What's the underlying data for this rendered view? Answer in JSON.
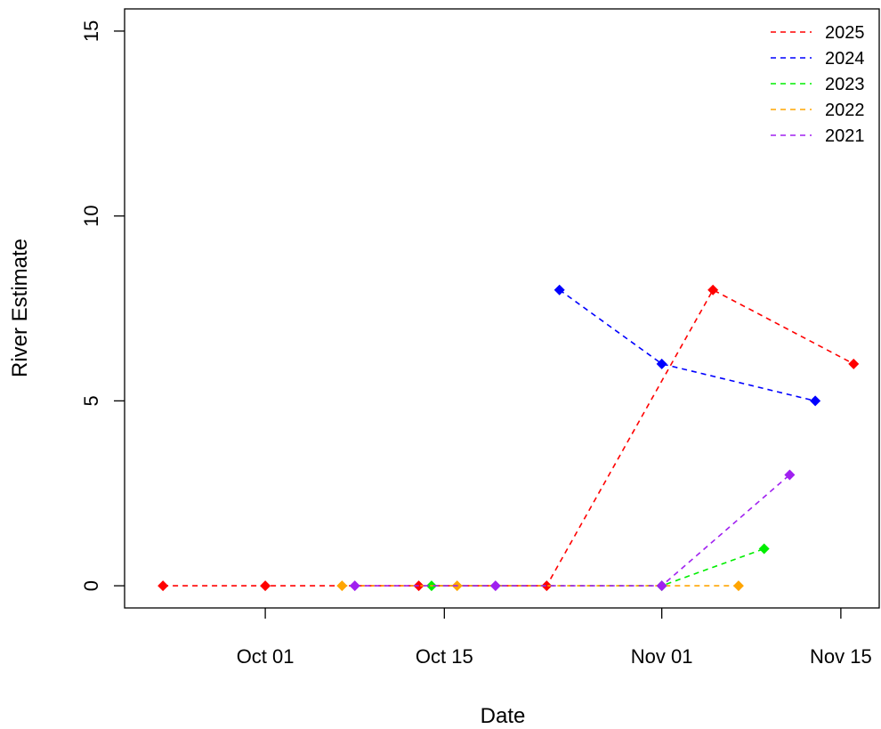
{
  "chart_data": {
    "type": "line",
    "xlabel": "Date",
    "ylabel": "River Estimate",
    "x_range": [
      "2025-09-20",
      "2025-11-18"
    ],
    "ylim": [
      -0.6,
      15.6
    ],
    "x_ticks": [
      {
        "date": "2025-10-01",
        "label": "Oct 01"
      },
      {
        "date": "2025-10-15",
        "label": "Oct 15"
      },
      {
        "date": "2025-11-01",
        "label": "Nov 01"
      },
      {
        "date": "2025-11-15",
        "label": "Nov 15"
      }
    ],
    "y_ticks": [
      0,
      5,
      10,
      15
    ],
    "grid": false,
    "legend_position": "top-right",
    "line_style": "dashed",
    "marker": "diamond",
    "series": [
      {
        "name": "2025",
        "color": "#ff0000",
        "points": [
          {
            "x": "2025-09-23",
            "y": 0
          },
          {
            "x": "2025-10-01",
            "y": 0
          },
          {
            "x": "2025-10-13",
            "y": 0
          },
          {
            "x": "2025-10-23",
            "y": 0
          },
          {
            "x": "2025-11-05",
            "y": 8
          },
          {
            "x": "2025-11-16",
            "y": 6
          }
        ]
      },
      {
        "name": "2024",
        "color": "#0000ff",
        "points": [
          {
            "x": "2025-10-24",
            "y": 8
          },
          {
            "x": "2025-11-01",
            "y": 6
          },
          {
            "x": "2025-11-13",
            "y": 5
          }
        ]
      },
      {
        "name": "2023",
        "color": "#00ee00",
        "points": [
          {
            "x": "2025-10-14",
            "y": 0
          },
          {
            "x": "2025-11-01",
            "y": 0
          },
          {
            "x": "2025-11-09",
            "y": 1
          }
        ]
      },
      {
        "name": "2022",
        "color": "#ffa500",
        "points": [
          {
            "x": "2025-10-07",
            "y": 0
          },
          {
            "x": "2025-10-16",
            "y": 0
          },
          {
            "x": "2025-11-07",
            "y": 0
          }
        ]
      },
      {
        "name": "2021",
        "color": "#a020f0",
        "points": [
          {
            "x": "2025-10-08",
            "y": 0
          },
          {
            "x": "2025-10-19",
            "y": 0
          },
          {
            "x": "2025-11-01",
            "y": 0
          },
          {
            "x": "2025-11-11",
            "y": 3
          }
        ]
      }
    ]
  }
}
